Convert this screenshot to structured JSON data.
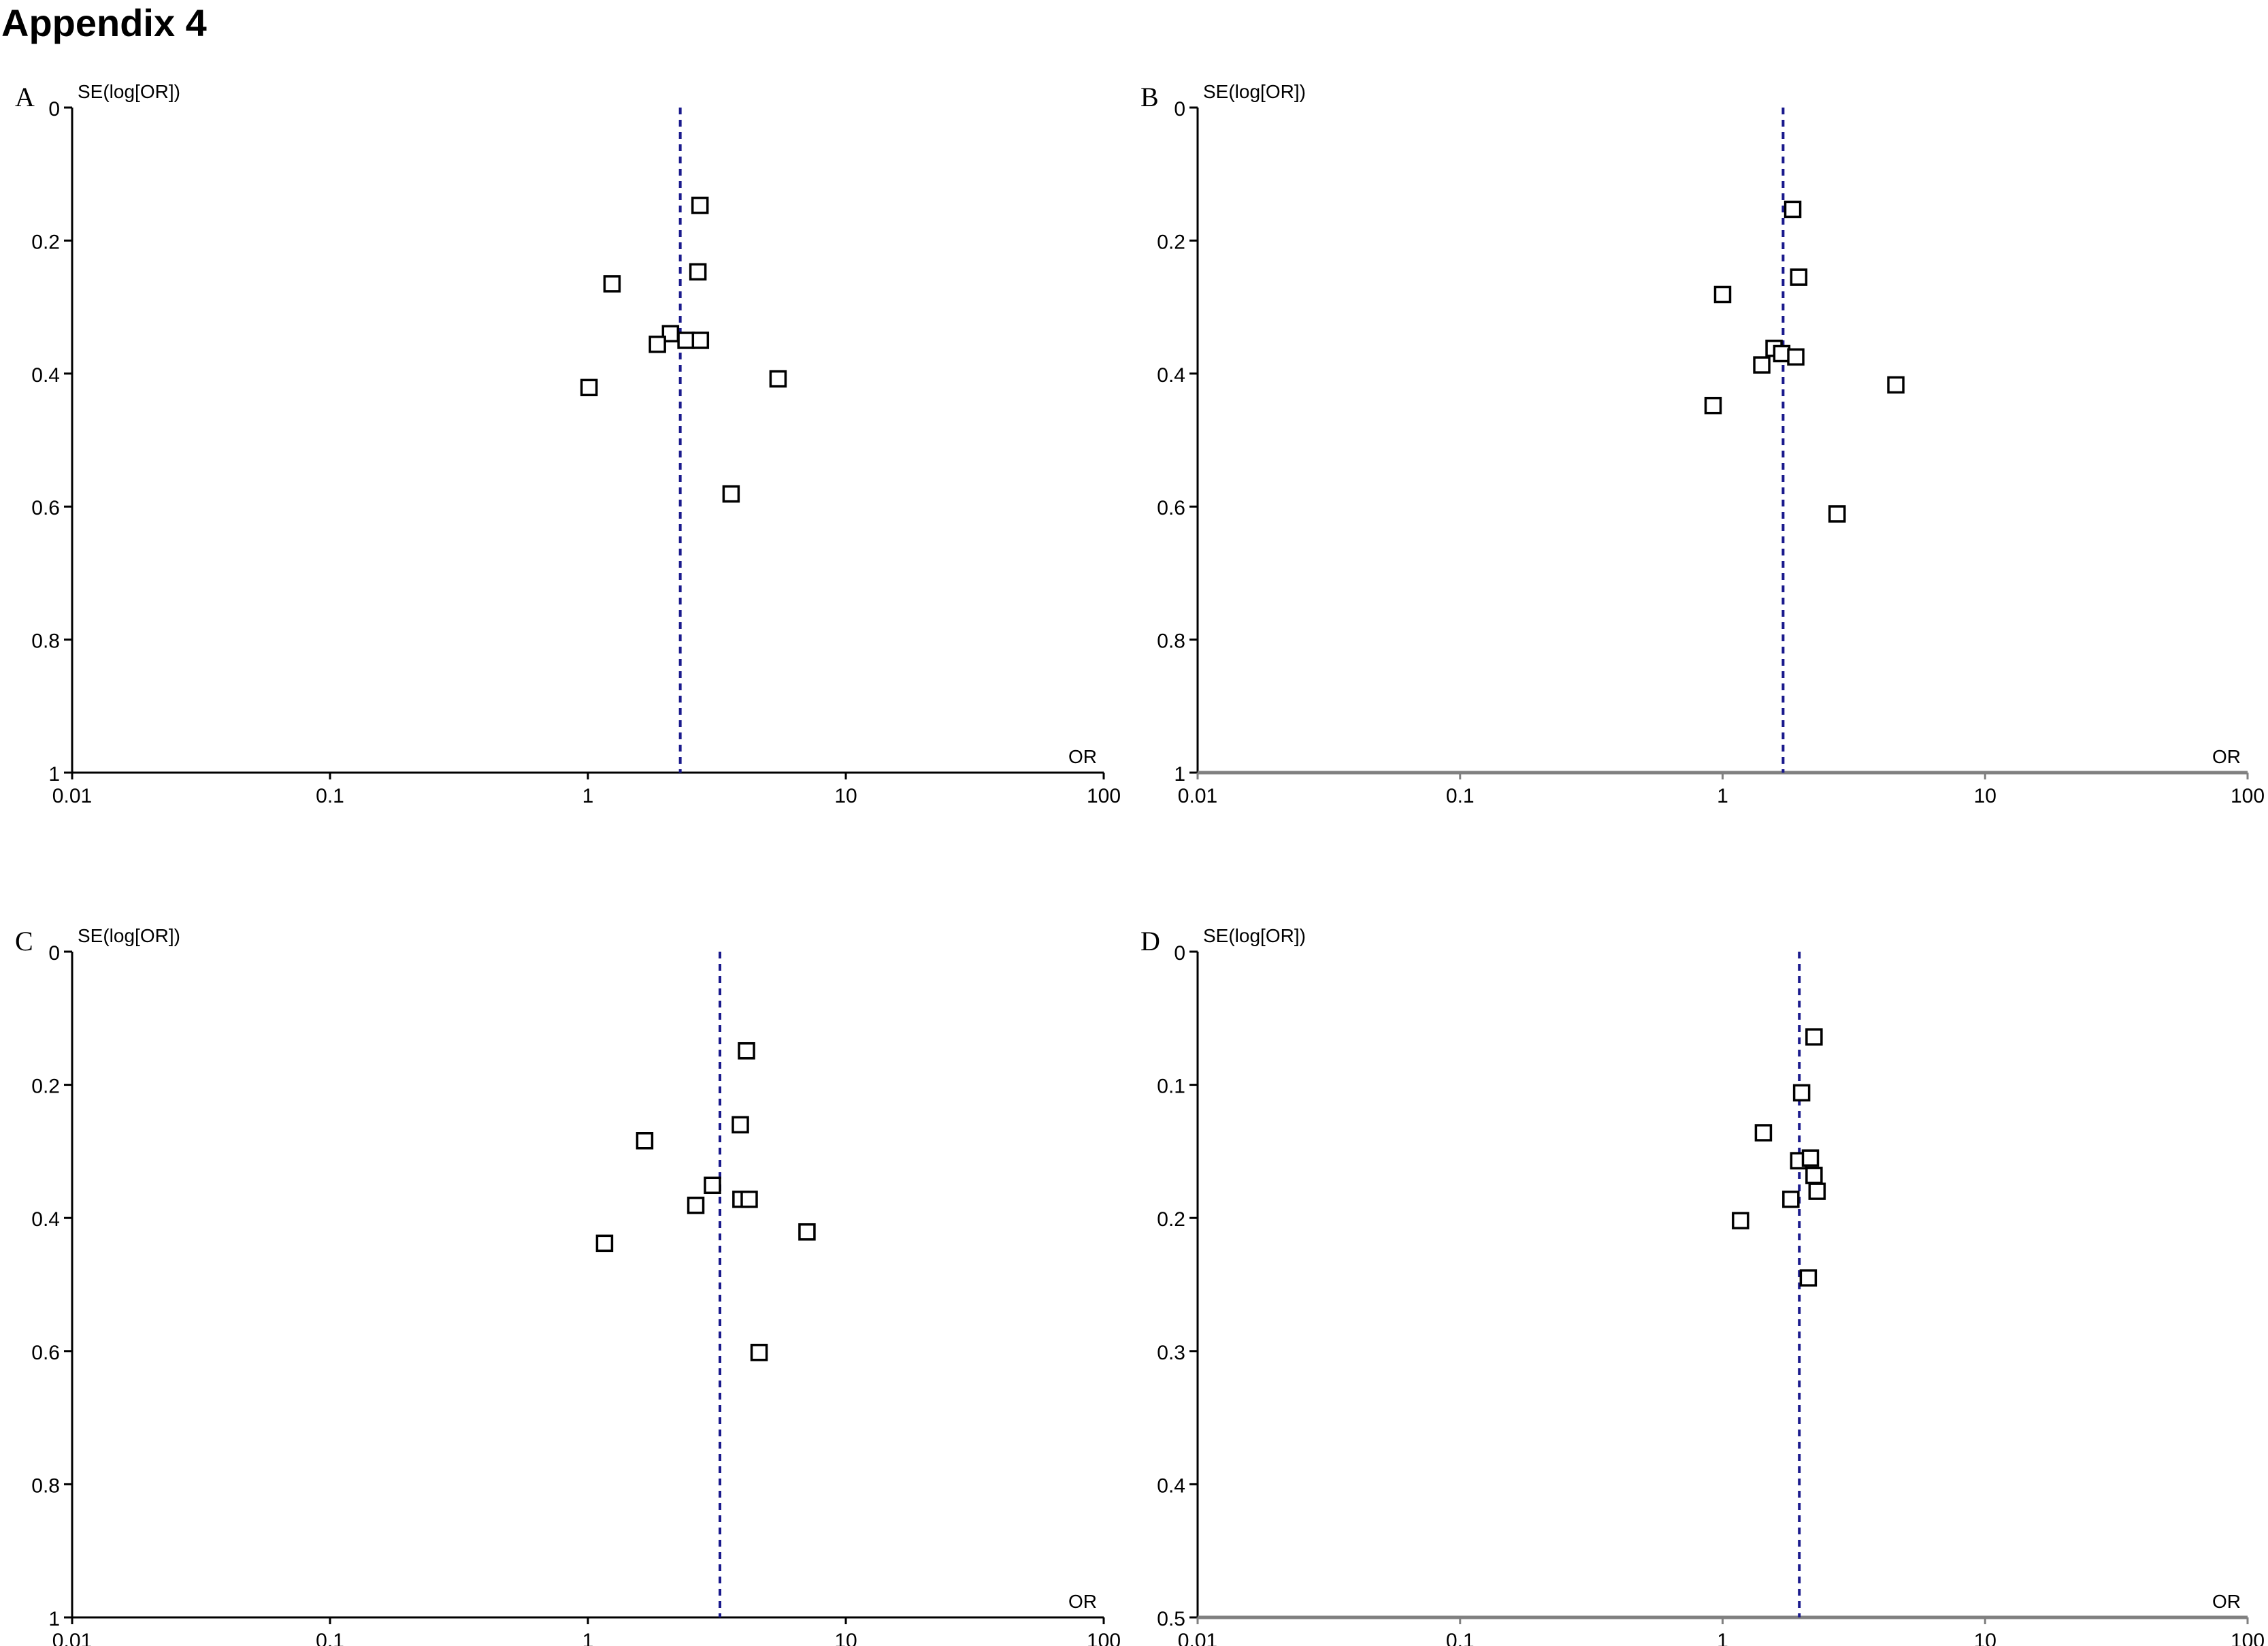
{
  "page_title": "Appendix 4",
  "colors": {
    "axis_ab": "#000000",
    "axis_gray": "#808080",
    "ref_line": "#1a1a8c",
    "marker": "#000000"
  },
  "chart_data": [
    {
      "panel": "A",
      "type": "scatter",
      "ylabel": "SE(log[OR])",
      "xlabel": "OR",
      "x_scale": "log",
      "xlim": [
        0.01,
        100
      ],
      "ylim": [
        0,
        1
      ],
      "y_inverted": true,
      "x_ticks": [
        "0.01",
        "0.1",
        "1",
        "10",
        "100"
      ],
      "y_ticks": [
        "0",
        "0.2",
        "0.4",
        "0.6",
        "0.8",
        "1"
      ],
      "axis_style": "black",
      "pooled_or": 2.28,
      "points": [
        {
          "or": 2.72,
          "se": 0.147
        },
        {
          "or": 1.24,
          "se": 0.265
        },
        {
          "or": 2.67,
          "se": 0.247
        },
        {
          "or": 2.09,
          "se": 0.34
        },
        {
          "or": 1.86,
          "se": 0.356
        },
        {
          "or": 2.4,
          "se": 0.35
        },
        {
          "or": 2.73,
          "se": 0.35
        },
        {
          "or": 1.01,
          "se": 0.421
        },
        {
          "or": 5.46,
          "se": 0.408
        },
        {
          "or": 3.59,
          "se": 0.581
        }
      ]
    },
    {
      "panel": "B",
      "type": "scatter",
      "ylabel": "SE(log[OR])",
      "xlabel": "OR",
      "x_scale": "log",
      "xlim": [
        0.01,
        100
      ],
      "ylim": [
        0,
        1
      ],
      "y_inverted": true,
      "x_ticks": [
        "0.01",
        "0.1",
        "1",
        "10",
        "100"
      ],
      "y_ticks": [
        "0",
        "0.2",
        "0.4",
        "0.6",
        "0.8",
        "1"
      ],
      "axis_style": "gray",
      "pooled_or": 1.7,
      "points": [
        {
          "or": 1.85,
          "se": 0.153
        },
        {
          "or": 1.95,
          "se": 0.255
        },
        {
          "or": 1.0,
          "se": 0.281
        },
        {
          "or": 1.57,
          "se": 0.362
        },
        {
          "or": 1.68,
          "se": 0.37
        },
        {
          "or": 1.9,
          "se": 0.375
        },
        {
          "or": 1.41,
          "se": 0.387
        },
        {
          "or": 0.92,
          "se": 0.448
        },
        {
          "or": 4.57,
          "se": 0.417
        },
        {
          "or": 2.73,
          "se": 0.611
        }
      ]
    },
    {
      "panel": "C",
      "type": "scatter",
      "ylabel": "SE(log[OR])",
      "xlabel": "OR",
      "x_scale": "log",
      "xlim": [
        0.01,
        100
      ],
      "ylim": [
        0,
        1
      ],
      "y_inverted": true,
      "x_ticks": [
        "0.01",
        "0.1",
        "1",
        "10",
        "100"
      ],
      "y_ticks": [
        "0",
        "0.2",
        "0.4",
        "0.6",
        "0.8",
        "1"
      ],
      "axis_style": "black",
      "pooled_or": 3.25,
      "points": [
        {
          "or": 4.12,
          "se": 0.149
        },
        {
          "or": 3.9,
          "se": 0.26
        },
        {
          "or": 1.66,
          "se": 0.284
        },
        {
          "or": 3.04,
          "se": 0.351
        },
        {
          "or": 2.62,
          "se": 0.381
        },
        {
          "or": 3.92,
          "se": 0.372
        },
        {
          "or": 4.22,
          "se": 0.372
        },
        {
          "or": 1.16,
          "se": 0.438
        },
        {
          "or": 7.07,
          "se": 0.421
        },
        {
          "or": 4.61,
          "se": 0.602
        }
      ]
    },
    {
      "panel": "D",
      "type": "scatter",
      "ylabel": "SE(log[OR])",
      "xlabel": "OR",
      "x_scale": "log",
      "xlim": [
        0.01,
        100
      ],
      "ylim": [
        0,
        0.5
      ],
      "y_inverted": true,
      "x_ticks": [
        "0.01",
        "0.1",
        "1",
        "10",
        "100"
      ],
      "y_ticks": [
        "0",
        "0.1",
        "0.2",
        "0.3",
        "0.4",
        "0.5"
      ],
      "axis_style": "gray",
      "pooled_or": 1.96,
      "points": [
        {
          "or": 2.23,
          "se": 0.064
        },
        {
          "or": 2.0,
          "se": 0.106
        },
        {
          "or": 1.43,
          "se": 0.136
        },
        {
          "or": 1.95,
          "se": 0.157
        },
        {
          "or": 2.16,
          "se": 0.155
        },
        {
          "or": 2.23,
          "se": 0.168
        },
        {
          "or": 2.29,
          "se": 0.18
        },
        {
          "or": 1.82,
          "se": 0.186
        },
        {
          "or": 1.17,
          "se": 0.202
        },
        {
          "or": 2.12,
          "se": 0.245
        }
      ]
    }
  ]
}
